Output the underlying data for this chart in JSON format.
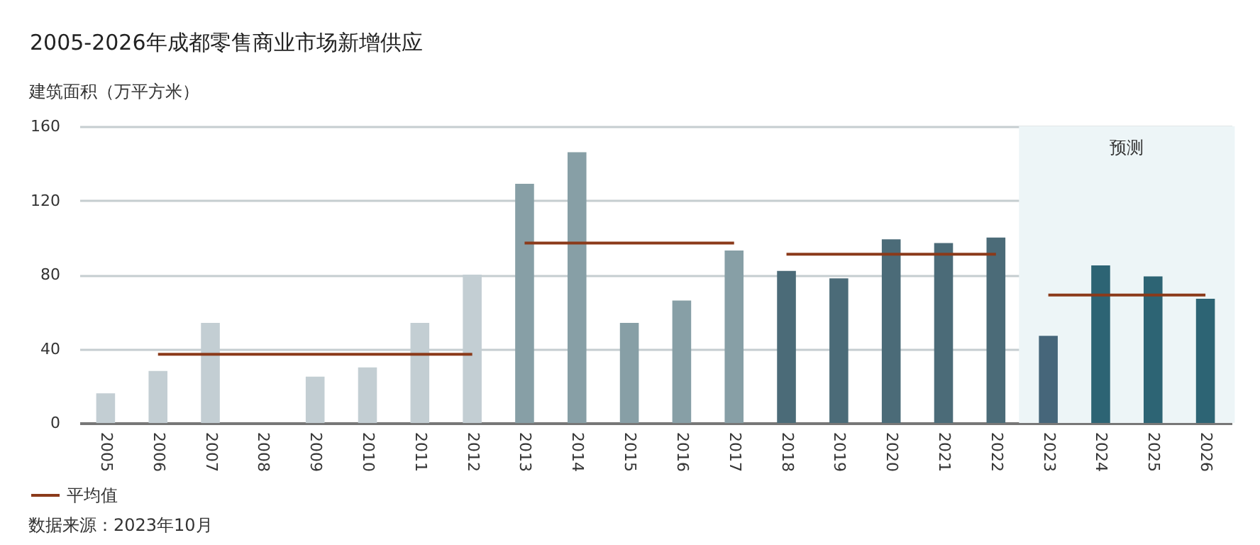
{
  "chart_data": {
    "type": "bar",
    "title": "2005-2026年成都零售商业市场新增供应",
    "ylabel": "建筑面积（万平方米）",
    "categories": [
      "2005",
      "2006",
      "2007",
      "2008",
      "2009",
      "2010",
      "2011",
      "2012",
      "2013",
      "2014",
      "2015",
      "2016",
      "2017",
      "2018",
      "2019",
      "2020",
      "2021",
      "2022",
      "2023",
      "2024",
      "2025",
      "2026"
    ],
    "values": [
      16,
      28,
      54,
      0,
      25,
      30,
      54,
      80,
      129,
      146,
      54,
      66,
      93,
      82,
      78,
      99,
      97,
      100,
      47,
      85,
      79,
      67
    ],
    "colors": [
      "#c3ced3",
      "#c3ced3",
      "#c3ced3",
      "#c3ced3",
      "#c3ced3",
      "#c3ced3",
      "#c3ced3",
      "#c3ced3",
      "#879fa6",
      "#879fa6",
      "#879fa6",
      "#879fa6",
      "#879fa6",
      "#4b6b78",
      "#4b6b78",
      "#4b6b78",
      "#4b6b78",
      "#4b6b78",
      "#46667a",
      "#2d6474",
      "#2d6474",
      "#2d6474"
    ],
    "series": [
      {
        "name": "平均值",
        "type": "line",
        "color": "#8b3a1a",
        "values": [
          null,
          37,
          37,
          37,
          37,
          37,
          37,
          37,
          null,
          null,
          null,
          null,
          null,
          null,
          null,
          null,
          null,
          null,
          null,
          null,
          null,
          null
        ]
      },
      {
        "type": "line",
        "color": "#8b3a1a",
        "values": [
          null,
          null,
          null,
          null,
          null,
          null,
          null,
          null,
          97,
          97,
          97,
          97,
          97,
          null,
          null,
          null,
          null,
          null,
          null,
          null,
          null,
          null
        ]
      },
      {
        "type": "line",
        "color": "#8b3a1a",
        "values": [
          null,
          null,
          null,
          null,
          null,
          null,
          null,
          null,
          null,
          null,
          null,
          null,
          null,
          91,
          91,
          91,
          91,
          91,
          null,
          null,
          null,
          null
        ]
      },
      {
        "type": "line",
        "color": "#8b3a1a",
        "values": [
          null,
          null,
          null,
          null,
          null,
          null,
          null,
          null,
          null,
          null,
          null,
          null,
          null,
          null,
          null,
          null,
          null,
          null,
          69,
          69,
          69,
          69
        ]
      }
    ],
    "bands": [
      {
        "axis": "x",
        "from": "2023",
        "to": "2026",
        "label": "预测",
        "color": "#edf5f7"
      }
    ],
    "ylim": [
      0,
      160
    ],
    "yticks": [
      0,
      40,
      80,
      120,
      160
    ],
    "grid": "y",
    "legend": "bottom left",
    "annotations": [
      "数据来源：2023年10月"
    ]
  }
}
